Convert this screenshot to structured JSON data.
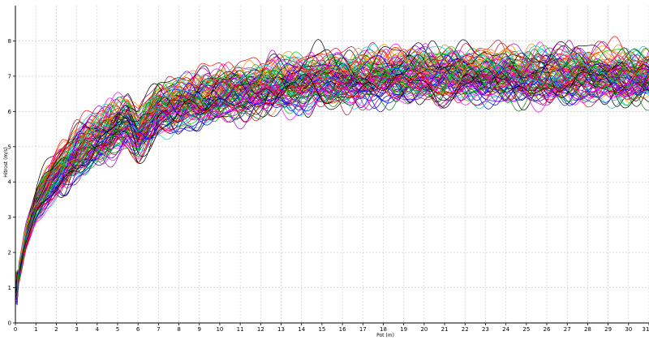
{
  "chart_data": {
    "type": "line",
    "title": "",
    "xlabel": "Pot (m)",
    "ylabel": "Hitrost (m/s)",
    "xlim": [
      0,
      31
    ],
    "ylim": [
      0,
      9
    ],
    "x_ticks": [
      "0",
      "1",
      "2",
      "3",
      "4",
      "5",
      "6",
      "7",
      "8",
      "9",
      "10",
      "11",
      "12",
      "13",
      "14",
      "15",
      "16",
      "17",
      "18",
      "19",
      "20",
      "21",
      "22",
      "23",
      "24",
      "25",
      "26",
      "27",
      "28",
      "29",
      "30",
      "31"
    ],
    "y_ticks": [
      "0",
      "1",
      "2",
      "3",
      "4",
      "5",
      "6",
      "7",
      "8"
    ],
    "grid": true,
    "legend": "none",
    "series_count": 100,
    "mean_profile": {
      "x": [
        0,
        0.5,
        1,
        1.5,
        2,
        3,
        4,
        5,
        5.5,
        6,
        7,
        8,
        9,
        10,
        12,
        14,
        16,
        18,
        20,
        22,
        24,
        26,
        28,
        30,
        31
      ],
      "y": [
        0.9,
        2.4,
        3.3,
        3.8,
        4.2,
        4.8,
        5.2,
        5.6,
        5.7,
        5.3,
        6.0,
        6.2,
        6.3,
        6.45,
        6.65,
        6.8,
        6.9,
        7.0,
        7.0,
        7.0,
        7.0,
        7.0,
        7.0,
        6.95,
        7.0
      ]
    },
    "colors": [
      "#ff0000",
      "#00cc00",
      "#0000ff",
      "#ff00ff",
      "#00cccc",
      "#ff8800",
      "#9900cc",
      "#cc0033",
      "#000000",
      "#008800"
    ]
  }
}
